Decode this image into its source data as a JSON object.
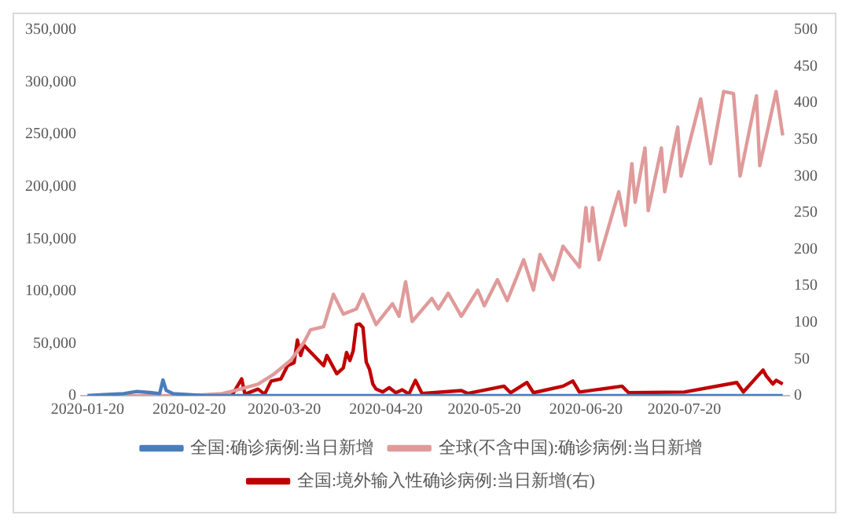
{
  "chart_data": {
    "type": "line",
    "series": [
      {
        "name": "全国:确诊病例:当日新增",
        "color": "#4a7ebb",
        "x": [
          "2020-01-20",
          "2020-01-25",
          "2020-01-31",
          "2020-02-04",
          "2020-02-08",
          "2020-02-11",
          "2020-02-12",
          "2020-02-13",
          "2020-02-15",
          "2020-02-20",
          "2020-02-25",
          "2020-03-01",
          "2020-03-10",
          "2020-04-01",
          "2020-05-01",
          "2020-06-01",
          "2020-07-01",
          "2020-08-01",
          "2020-08-19"
        ],
        "values": [
          0,
          1000,
          2000,
          4000,
          3000,
          2000,
          15000,
          5000,
          2000,
          1000,
          0,
          0,
          0,
          0,
          0,
          0,
          0,
          0,
          0
        ]
      },
      {
        "name": "全球(不含中国):确诊病例:当日新增",
        "color": "#e09a9a",
        "x": [
          "2020-01-20",
          "2020-02-01",
          "2020-02-20",
          "2020-03-01",
          "2020-03-05",
          "2020-03-12",
          "2020-03-17",
          "2020-03-22",
          "2020-03-26",
          "2020-03-28",
          "2020-04-01",
          "2020-04-04",
          "2020-04-07",
          "2020-04-11",
          "2020-04-13",
          "2020-04-17",
          "2020-04-22",
          "2020-04-24",
          "2020-04-26",
          "2020-04-28",
          "2020-05-04",
          "2020-05-06",
          "2020-05-09",
          "2020-05-13",
          "2020-05-18",
          "2020-05-20",
          "2020-05-24",
          "2020-05-27",
          "2020-06-01",
          "2020-06-04",
          "2020-06-06",
          "2020-06-10",
          "2020-06-13",
          "2020-06-18",
          "2020-06-20",
          "2020-06-21",
          "2020-06-22",
          "2020-06-24",
          "2020-06-30",
          "2020-07-02",
          "2020-07-04",
          "2020-07-05",
          "2020-07-08",
          "2020-07-09",
          "2020-07-13",
          "2020-07-14",
          "2020-07-18",
          "2020-07-19",
          "2020-07-25",
          "2020-07-28",
          "2020-08-01",
          "2020-08-04",
          "2020-08-06",
          "2020-08-11",
          "2020-08-12",
          "2020-08-17",
          "2020-08-19"
        ],
        "values": [
          0,
          0,
          0,
          2000,
          5000,
          11000,
          21000,
          34000,
          51000,
          63000,
          66000,
          97000,
          78000,
          83000,
          97000,
          68000,
          88000,
          76000,
          109000,
          71000,
          93000,
          83000,
          98000,
          76000,
          101000,
          86000,
          111000,
          91000,
          130000,
          101000,
          135000,
          111000,
          143000,
          123000,
          180000,
          148000,
          180000,
          130000,
          195000,
          163000,
          222000,
          185000,
          237000,
          177000,
          237000,
          195000,
          257000,
          210000,
          284000,
          222000,
          291000,
          289000,
          210000,
          287000,
          220000,
          291000,
          249000
        ]
      },
      {
        "name": "全国:境外输入性确诊病例:当日新增(右)",
        "color": "#c00000",
        "axis": "y2",
        "x": [
          "2020-03-01",
          "2020-03-04",
          "2020-03-07",
          "2020-03-08",
          "2020-03-12",
          "2020-03-14",
          "2020-03-16",
          "2020-03-19",
          "2020-03-21",
          "2020-03-23",
          "2020-03-24",
          "2020-03-25",
          "2020-03-26",
          "2020-03-29",
          "2020-04-01",
          "2020-04-02",
          "2020-04-05",
          "2020-04-07",
          "2020-04-08",
          "2020-04-09",
          "2020-04-10",
          "2020-04-11",
          "2020-04-12",
          "2020-04-13",
          "2020-04-14",
          "2020-04-15",
          "2020-04-16",
          "2020-04-17",
          "2020-04-19",
          "2020-04-21",
          "2020-04-23",
          "2020-04-25",
          "2020-04-27",
          "2020-04-29",
          "2020-05-01",
          "2020-05-13",
          "2020-05-15",
          "2020-05-26",
          "2020-05-28",
          "2020-06-02",
          "2020-06-04",
          "2020-06-13",
          "2020-06-16",
          "2020-06-18",
          "2020-07-01",
          "2020-07-03",
          "2020-07-20",
          "2020-08-05",
          "2020-08-07",
          "2020-08-13",
          "2020-08-14",
          "2020-08-16",
          "2020-08-17",
          "2020-08-19"
        ],
        "values": [
          0,
          0,
          23,
          2,
          9,
          2,
          20,
          23,
          41,
          45,
          76,
          55,
          69,
          55,
          41,
          55,
          30,
          38,
          59,
          48,
          61,
          97,
          98,
          93,
          46,
          36,
          16,
          9,
          5,
          11,
          4,
          8,
          2,
          21,
          3,
          7,
          3,
          13,
          4,
          18,
          4,
          13,
          20,
          5,
          13,
          4,
          5,
          18,
          5,
          35,
          27,
          16,
          21,
          16
        ]
      }
    ],
    "xlim": [
      "2020-01-18",
      "2020-08-21"
    ],
    "xticks": [
      "2020-01-20",
      "2020-02-20",
      "2020-03-20",
      "2020-04-20",
      "2020-05-20",
      "2020-06-20",
      "2020-07-20"
    ],
    "ylim": [
      0,
      350000
    ],
    "yticks": [
      0,
      {
        "value": 50000,
        "label": "50,000"
      },
      {
        "value": 100000,
        "label": "100,000"
      },
      {
        "value": 150000,
        "label": "150,000"
      },
      {
        "value": 200000,
        "label": "200,000"
      },
      {
        "value": 250000,
        "label": "250,000"
      },
      {
        "value": 300000,
        "label": "300,000"
      },
      {
        "value": 350000,
        "label": "350,000"
      }
    ],
    "y2lim": [
      0,
      500
    ],
    "y2ticks": [
      0,
      50,
      100,
      150,
      200,
      250,
      300,
      350,
      400,
      450,
      500
    ],
    "grid": false,
    "legend": "bottom",
    "marker": "none",
    "line_style": "solid"
  }
}
